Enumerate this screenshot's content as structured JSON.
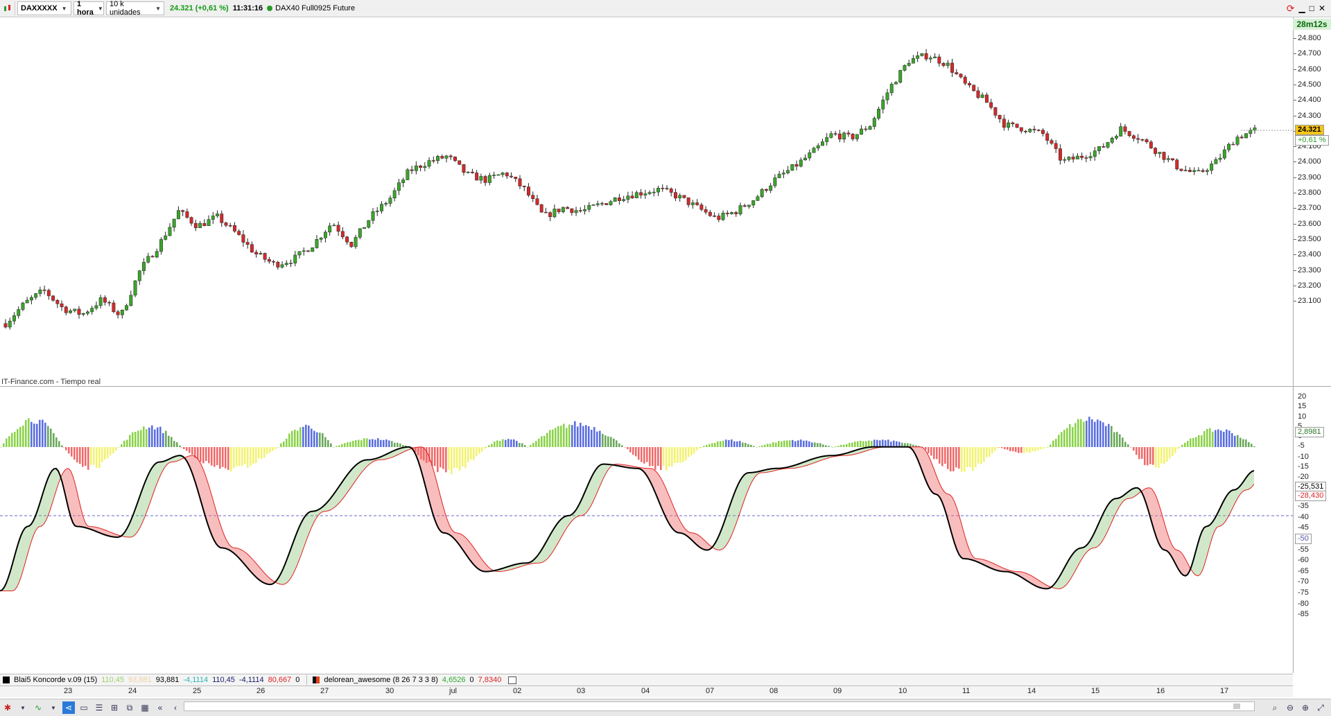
{
  "toolbar": {
    "symbol": "DAXXXXX",
    "timeframe": "1 hora",
    "units": "10 k unidades",
    "price_change": "24.321 (+0,61 %)",
    "time": "11:31:16",
    "instrument": "DAX40 Full0925 Future"
  },
  "price_axis": {
    "countdown": "28m12s",
    "labels": [
      "24.800",
      "24.700",
      "24.600",
      "24.500",
      "24.400",
      "24.300",
      "24.200",
      "24.100",
      "24.000",
      "23.900",
      "23.800",
      "23.700",
      "23.600",
      "23.500",
      "23.400",
      "23.300",
      "23.200",
      "23.100"
    ],
    "last_price": "24.321",
    "last_change": "+0,61 %"
  },
  "source_label": "IT-Finance.com - Tiempo real",
  "osc_axis": {
    "labels": [
      "20",
      "15",
      "10",
      "5",
      "0",
      "-5",
      "-10",
      "-15",
      "-20",
      "-30",
      "-35",
      "-40",
      "-45",
      "-55",
      "-60",
      "-65",
      "-70",
      "-75",
      "-80",
      "-85"
    ],
    "histogram_value": "2,8981",
    "koncorde_value1": "-25,531",
    "koncorde_value2": "-28,430",
    "midline": "-50"
  },
  "legend": {
    "ind1_name": "Blai5 Koncorde v.09 (15)",
    "ind1_v1": "110,45",
    "ind1_v2": "93,881",
    "ind1_v3": "93,881",
    "ind1_v4": "-4,1114",
    "ind1_v5": "110,45",
    "ind1_v6": "-4,1114",
    "ind1_v7": "80,667",
    "ind1_v8": "0",
    "ind2_name": "delorean_awesome (8 26 7 3 3 8)",
    "ind2_v1": "4,6526",
    "ind2_v2": "0",
    "ind2_v3": "7,8340"
  },
  "dates": [
    "23",
    "24",
    "25",
    "26",
    "27",
    "30",
    "jul",
    "02",
    "03",
    "04",
    "07",
    "08",
    "09",
    "10",
    "11",
    "14",
    "15",
    "16",
    "17"
  ],
  "colors": {
    "up": "#3aa62a",
    "down": "#d42a2a",
    "hist_green": "#8bd24a",
    "hist_blue": "#5b6ee0",
    "hist_red": "#f06a6a",
    "hist_yellow": "#f2f272"
  },
  "chart_data": {
    "type": "candlestick",
    "y_range": [
      23050,
      24830
    ],
    "close_path": [
      23270,
      23380,
      23450,
      23350,
      23320,
      23400,
      23310,
      23560,
      23700,
      23880,
      23800,
      23850,
      23760,
      23650,
      23590,
      23620,
      23700,
      23820,
      23700,
      23850,
      23950,
      24100,
      24150,
      24180,
      24080,
      24050,
      24090,
      24000,
      23850,
      23900,
      23880,
      23920,
      23960,
      23980,
      24000,
      23960,
      23900,
      23840,
      23880,
      23950,
      24050,
      24120,
      24200,
      24300,
      24280,
      24350,
      24550,
      24700,
      24730,
      24680,
      24560,
      24480,
      24350,
      24330,
      24300,
      24150,
      24180,
      24220,
      24330,
      24280,
      24200,
      24120,
      24080,
      24150,
      24280,
      24320
    ]
  }
}
